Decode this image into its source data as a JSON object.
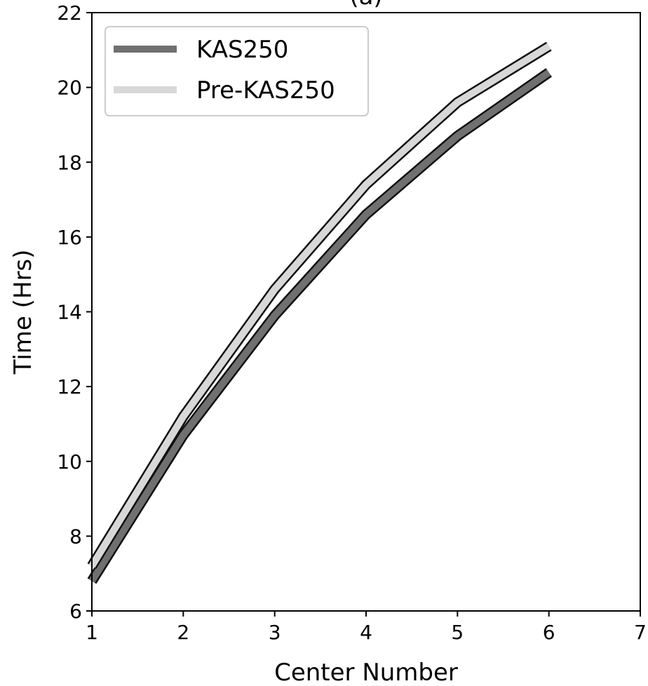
{
  "chart_data": {
    "type": "line",
    "title": "(a)",
    "xlabel": "Center Number",
    "ylabel": "Time (Hrs)",
    "xlim": [
      1,
      7
    ],
    "ylim": [
      6,
      22
    ],
    "xticks": [
      1,
      2,
      3,
      4,
      5,
      6,
      7
    ],
    "yticks": [
      6,
      8,
      10,
      12,
      14,
      16,
      18,
      20,
      22
    ],
    "grid": false,
    "legend_position": "top-left",
    "x": [
      1,
      2,
      3,
      4,
      5,
      6
    ],
    "series": [
      {
        "name": "KAS250",
        "values": [
          6.8,
          10.7,
          13.9,
          16.6,
          18.7,
          20.4
        ],
        "color": "#707070"
      },
      {
        "name": "Pre-KAS250",
        "values": [
          7.2,
          11.2,
          14.6,
          17.4,
          19.6,
          21.1
        ],
        "color": "#d8d8d8"
      }
    ]
  }
}
